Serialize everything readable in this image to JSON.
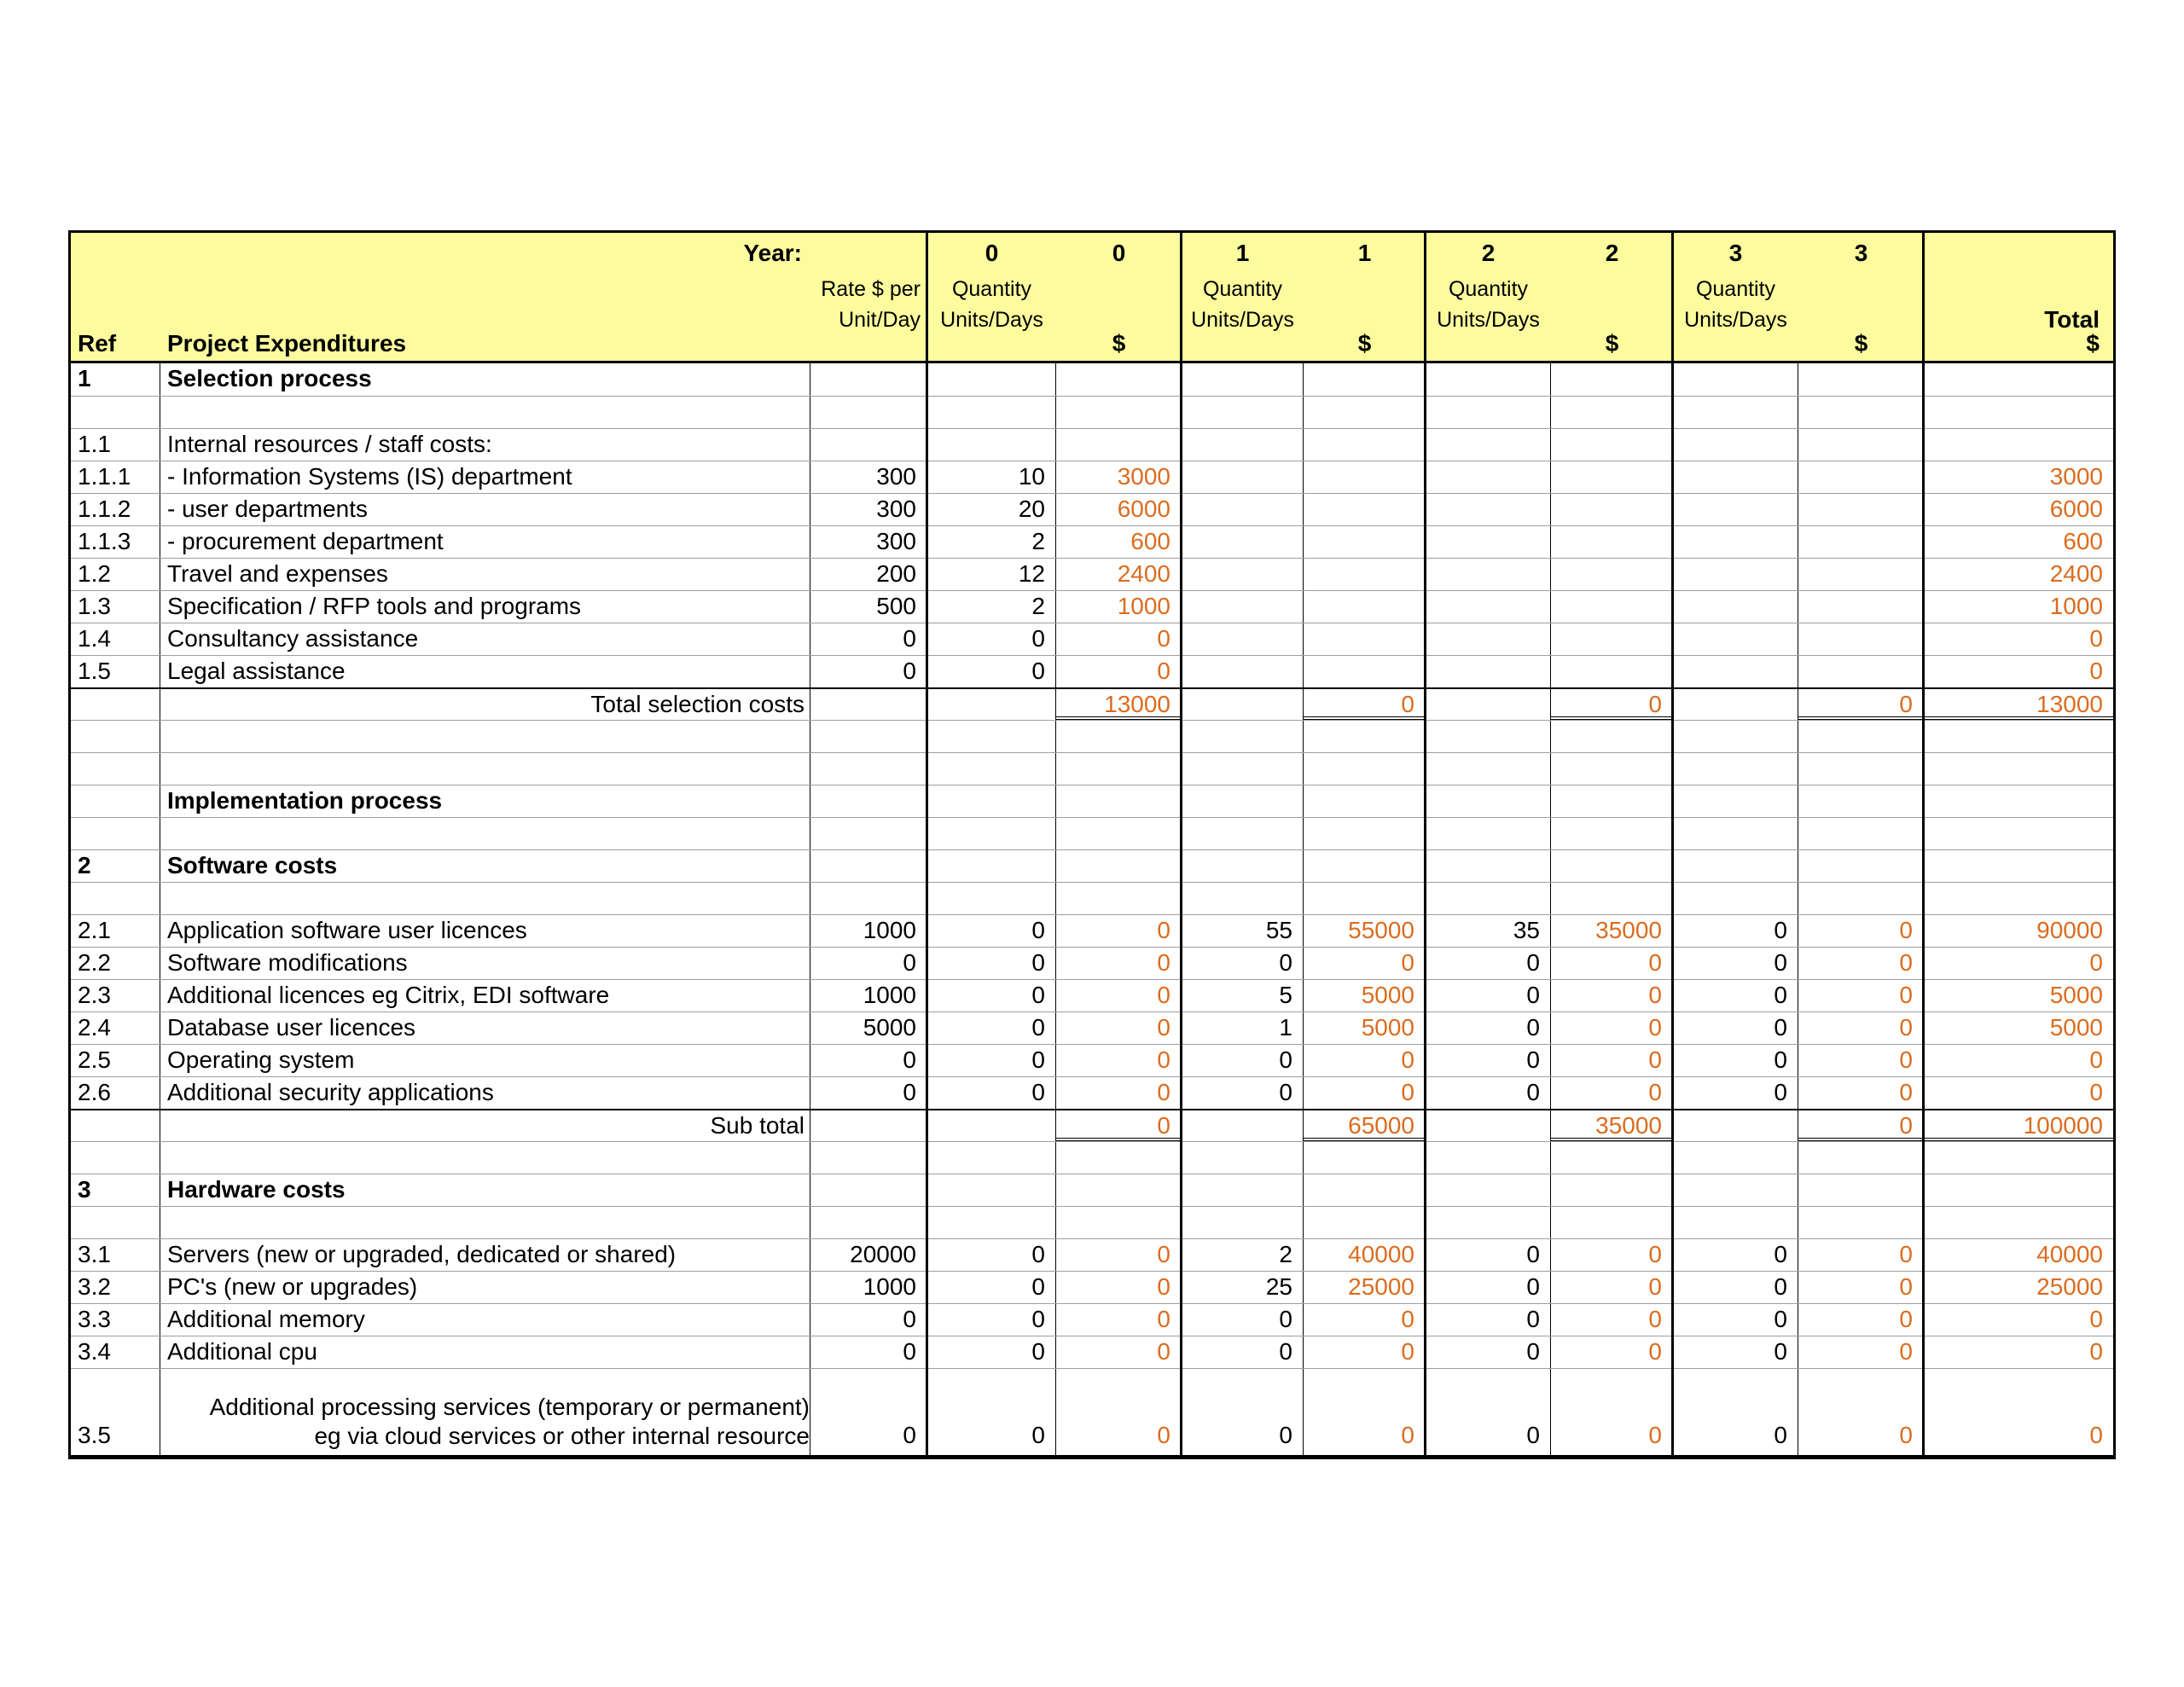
{
  "colors": {
    "header_bg": "#FCFC9E",
    "amount_text": "#DB6C1F",
    "grid_line": "#9e9e9e",
    "border": "#000000"
  },
  "table": {
    "header": {
      "year_label": "Year:",
      "year_numbers": [
        "0",
        "0",
        "1",
        "1",
        "2",
        "2",
        "3",
        "3"
      ],
      "rate_label_line1": "Rate $ per",
      "rate_label_line2": "Unit/Day",
      "quantity_label": "Quantity",
      "units_label": "Units/Days",
      "dollar_sign": "$",
      "total_label": "Total",
      "ref_label": "Ref",
      "expenditures_label": "Project Expenditures"
    },
    "rows": [
      {
        "t": "sec",
        "ref": "1",
        "desc": "Selection process"
      },
      {
        "t": "empty"
      },
      {
        "t": "item",
        "ref": "1.1",
        "desc": "Internal resources / staff costs:"
      },
      {
        "t": "item",
        "ref": "1.1.1",
        "desc": "- Information Systems (IS) department",
        "vals": [
          "300",
          "10",
          "3000",
          "",
          "",
          "",
          "",
          "",
          "",
          "3000"
        ]
      },
      {
        "t": "item",
        "ref": "1.1.2",
        "desc": "- user departments",
        "vals": [
          "300",
          "20",
          "6000",
          "",
          "",
          "",
          "",
          "",
          "",
          "6000"
        ]
      },
      {
        "t": "item",
        "ref": "1.1.3",
        "desc": "- procurement department",
        "vals": [
          "300",
          "2",
          "600",
          "",
          "",
          "",
          "",
          "",
          "",
          "600"
        ]
      },
      {
        "t": "item",
        "ref": "1.2",
        "desc": "Travel and expenses",
        "vals": [
          "200",
          "12",
          "2400",
          "",
          "",
          "",
          "",
          "",
          "",
          "2400"
        ]
      },
      {
        "t": "item",
        "ref": "1.3",
        "desc": "Specification / RFP tools and programs",
        "vals": [
          "500",
          "2",
          "1000",
          "",
          "",
          "",
          "",
          "",
          "",
          "1000"
        ]
      },
      {
        "t": "item",
        "ref": "1.4",
        "desc": "Consultancy assistance",
        "vals": [
          "0",
          "0",
          "0",
          "",
          "",
          "",
          "",
          "",
          "",
          "0"
        ]
      },
      {
        "t": "item",
        "ref": "1.5",
        "desc": "Legal assistance",
        "vals": [
          "0",
          "0",
          "0",
          "",
          "",
          "",
          "",
          "",
          "",
          "0"
        ]
      },
      {
        "t": "total",
        "ref": "",
        "desc": "Total selection costs",
        "vals": [
          "",
          "",
          "13000",
          "",
          "0",
          "",
          "0",
          "",
          "0",
          "13000"
        ]
      },
      {
        "t": "empty"
      },
      {
        "t": "empty"
      },
      {
        "t": "sec",
        "ref": "",
        "desc": "Implementation process"
      },
      {
        "t": "empty"
      },
      {
        "t": "sec",
        "ref": "2",
        "desc": "Software costs"
      },
      {
        "t": "empty"
      },
      {
        "t": "item",
        "ref": "2.1",
        "desc": "Application software user licences",
        "vals": [
          "1000",
          "0",
          "0",
          "55",
          "55000",
          "35",
          "35000",
          "0",
          "0",
          "90000"
        ]
      },
      {
        "t": "item",
        "ref": "2.2",
        "desc": "Software modifications",
        "vals": [
          "0",
          "0",
          "0",
          "0",
          "0",
          "0",
          "0",
          "0",
          "0",
          "0"
        ]
      },
      {
        "t": "item",
        "ref": "2.3",
        "desc": "Additional licences eg Citrix, EDI software",
        "vals": [
          "1000",
          "0",
          "0",
          "5",
          "5000",
          "0",
          "0",
          "0",
          "0",
          "5000"
        ]
      },
      {
        "t": "item",
        "ref": "2.4",
        "desc": "Database user licences",
        "vals": [
          "5000",
          "0",
          "0",
          "1",
          "5000",
          "0",
          "0",
          "0",
          "0",
          "5000"
        ]
      },
      {
        "t": "item",
        "ref": "2.5",
        "desc": "Operating system",
        "vals": [
          "0",
          "0",
          "0",
          "0",
          "0",
          "0",
          "0",
          "0",
          "0",
          "0"
        ]
      },
      {
        "t": "item",
        "ref": "2.6",
        "desc": "Additional security applications",
        "vals": [
          "0",
          "0",
          "0",
          "0",
          "0",
          "0",
          "0",
          "0",
          "0",
          "0"
        ]
      },
      {
        "t": "total",
        "ref": "",
        "desc": "Sub total",
        "vals": [
          "",
          "",
          "0",
          "",
          "65000",
          "",
          "35000",
          "",
          "0",
          "100000"
        ]
      },
      {
        "t": "empty"
      },
      {
        "t": "sec",
        "ref": "3",
        "desc": "Hardware costs"
      },
      {
        "t": "empty"
      },
      {
        "t": "item",
        "ref": "3.1",
        "desc": "Servers (new or upgraded, dedicated or shared)",
        "vals": [
          "20000",
          "0",
          "0",
          "2",
          "40000",
          "0",
          "0",
          "0",
          "0",
          "40000"
        ]
      },
      {
        "t": "item",
        "ref": "3.2",
        "desc": "PC's (new or upgrades)",
        "vals": [
          "1000",
          "0",
          "0",
          "25",
          "25000",
          "0",
          "0",
          "0",
          "0",
          "25000"
        ]
      },
      {
        "t": "item",
        "ref": "3.3",
        "desc": "Additional memory",
        "vals": [
          "0",
          "0",
          "0",
          "0",
          "0",
          "0",
          "0",
          "0",
          "0",
          "0"
        ]
      },
      {
        "t": "item",
        "ref": "3.4",
        "desc": "Additional cpu",
        "vals": [
          "0",
          "0",
          "0",
          "0",
          "0",
          "0",
          "0",
          "0",
          "0",
          "0"
        ]
      },
      {
        "t": "tall",
        "ref": "3.5",
        "desc_lines": [
          "Additional processing services (temporary or permanent)",
          "eg via cloud services or other internal resource"
        ],
        "vals": [
          "0",
          "0",
          "0",
          "0",
          "0",
          "0",
          "0",
          "0",
          "0",
          "0"
        ]
      }
    ]
  }
}
